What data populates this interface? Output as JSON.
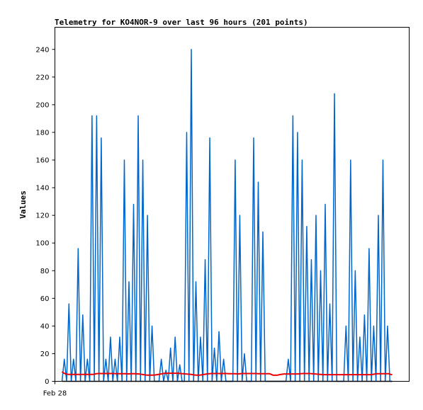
{
  "chart_data": {
    "type": "line",
    "title": "Telemetry for KO4NOR-9 over last 96 hours (201 points)",
    "ylabel": "Values",
    "xlabel": "",
    "x_tick_labels": [
      "Feb 28"
    ],
    "ylim": [
      0,
      256
    ],
    "y_ticks": [
      0,
      20,
      40,
      60,
      80,
      100,
      120,
      140,
      160,
      180,
      200,
      220,
      240
    ],
    "grid": false,
    "legend": "none",
    "series": [
      {
        "color": "#0066cc",
        "values": [
          0,
          16,
          0,
          56,
          0,
          16,
          0,
          96,
          0,
          48,
          0,
          16,
          0,
          192,
          0,
          192,
          0,
          176,
          0,
          16,
          0,
          32,
          0,
          16,
          0,
          32,
          0,
          160,
          0,
          72,
          0,
          128,
          0,
          192,
          0,
          160,
          0,
          120,
          0,
          40,
          0,
          0,
          0,
          16,
          0,
          8,
          0,
          24,
          0,
          32,
          0,
          12,
          0,
          0,
          180,
          0,
          240,
          0,
          72,
          0,
          32,
          0,
          88,
          0,
          176,
          0,
          24,
          0,
          36,
          0,
          16,
          0,
          0,
          0,
          0,
          160,
          0,
          120,
          0,
          20,
          0,
          0,
          0,
          176,
          0,
          144,
          0,
          108,
          0,
          0,
          0,
          0,
          0,
          0,
          0,
          0,
          0,
          0,
          16,
          0,
          192,
          0,
          180,
          0,
          160,
          0,
          112,
          0,
          88,
          0,
          120,
          0,
          80,
          0,
          128,
          0,
          56,
          0,
          208,
          0,
          0,
          0,
          0,
          40,
          0,
          160,
          0,
          80,
          0,
          32,
          0,
          48,
          0,
          96,
          0,
          40,
          0,
          120,
          0,
          160,
          0,
          40,
          0,
          0
        ]
      },
      {
        "color": "#ee0000",
        "values": [
          7,
          6,
          5.5,
          5.2,
          5,
          5,
          5,
          5,
          5,
          5,
          5,
          5,
          5,
          5,
          5,
          5,
          5,
          5,
          5,
          5,
          5.2,
          5.5,
          5.6,
          5.6,
          5.6,
          5.6,
          5.6,
          5.6,
          5.6,
          5.6,
          5.6,
          5.6,
          5.6,
          5.5,
          5.5,
          5.5,
          5.5,
          5.5,
          5.5,
          5.5,
          5.4,
          5.4,
          5.5,
          5.5,
          5.5,
          5.5,
          5.4,
          5.3,
          5.2,
          5,
          4.8,
          4.6,
          4.5,
          4.5,
          4.5,
          4.5,
          4.5,
          4.6,
          4.8,
          5,
          5.2,
          5.4,
          5.6,
          5.8,
          5.8,
          5.8,
          5.8,
          5.8,
          5.8,
          5.8,
          5.8,
          5.8,
          5.7,
          5.6,
          5.5,
          5.4,
          5.3,
          5.2,
          5.1,
          5,
          4.8,
          4.6,
          4.5,
          4.5,
          4.5,
          4.6,
          4.8,
          5,
          5.2,
          5.4,
          5.5,
          5.6,
          5.6,
          5.6,
          5.6,
          5.6,
          5.6,
          5.6,
          5.6,
          5.6,
          5.6,
          5.6,
          5.5,
          5.5,
          5.5,
          5.5,
          5.5,
          5.4,
          5.4,
          5.5,
          5.6,
          5.6,
          5.6,
          5.6,
          5.6,
          5.6,
          5.6,
          5.6,
          5.6,
          5.6,
          5.5,
          5.5,
          5.5,
          5.5,
          5.5,
          5.5,
          5.5,
          5.5,
          5,
          4.5,
          4.4,
          4.4,
          4.5,
          4.8,
          5,
          5.2,
          5.3,
          5.3,
          5.3,
          5.3,
          5.3,
          5.3,
          5.3,
          5.3,
          5.3,
          5.4,
          5.5,
          5.6,
          5.6,
          5.6,
          5.6,
          5.6,
          5.6,
          5.5,
          5.4,
          5.3,
          5.2,
          5.1,
          5,
          4.9,
          4.8,
          4.8,
          4.8,
          4.8,
          4.8,
          4.8,
          4.8,
          4.8,
          4.8,
          4.8,
          4.8,
          4.8,
          4.8,
          4.8,
          4.8,
          4.8,
          4.8,
          4.8,
          4.8,
          4.8,
          4.8,
          4.8,
          4.8,
          4.8,
          4.8,
          4.8,
          4.8,
          4.8,
          4.8,
          4.8,
          5,
          5.2,
          5.4,
          5.5,
          5.5,
          5.5,
          5.5,
          5.5,
          5.5,
          5.5,
          5.5,
          5,
          4.8
        ]
      },
      {
        "color": "#000000",
        "values": [
          0,
          0
        ]
      }
    ]
  }
}
